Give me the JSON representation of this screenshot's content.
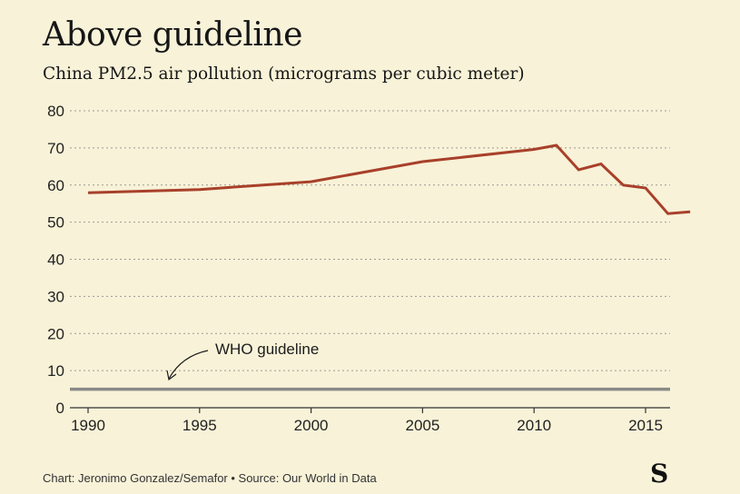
{
  "header": {
    "title": "Above guideline",
    "subtitle": "China PM2.5 air pollution (micrograms per cubic meter)"
  },
  "footer": {
    "credit": "Chart: Jeronimo Gonzalez/Semafor • Source: Our World in Data",
    "logo": "S"
  },
  "colors": {
    "background": "#f8f2d8",
    "series": "#a8402a",
    "guideline": "#8a8a86",
    "grid": "#9a9a92"
  },
  "chart_data": {
    "type": "line",
    "title": "Above guideline",
    "subtitle": "China PM2.5 air pollution (micrograms per cubic meter)",
    "xlabel": "",
    "ylabel": "",
    "xlim": [
      1990,
      2017
    ],
    "ylim": [
      0,
      80
    ],
    "x_ticks": [
      1990,
      1995,
      2000,
      2005,
      2010,
      2015
    ],
    "y_ticks": [
      0,
      10,
      20,
      30,
      40,
      50,
      60,
      70,
      80
    ],
    "grid": true,
    "series": [
      {
        "x": [
          1990,
          1995,
          2000,
          2005,
          2010,
          2011,
          2012,
          2013,
          2014,
          2015,
          2016,
          2017
        ],
        "values": [
          57.9,
          58.8,
          60.9,
          66.3,
          69.6,
          70.7,
          64.1,
          65.7,
          60.0,
          59.2,
          52.3,
          52.8
        ]
      }
    ],
    "reference_line": {
      "value": 5,
      "label": "WHO guideline"
    },
    "annotations": [
      {
        "text": "WHO guideline",
        "x": 1994,
        "y": 5
      }
    ]
  }
}
